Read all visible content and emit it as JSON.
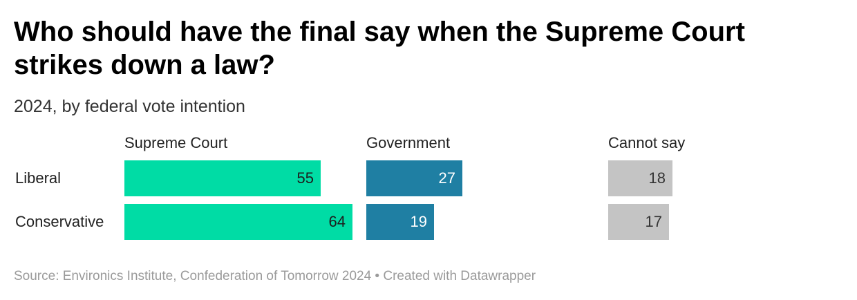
{
  "title": "Who should have the final say when the Supreme Court strikes down a law?",
  "subtitle": "2024, by federal vote intention",
  "source": "Source: Environics Institute, Confederation of Tomorrow 2024 • Created with Datawrapper",
  "chart_data": {
    "type": "bar",
    "orientation": "horizontal",
    "stacking": "split-columns",
    "title": "Who should have the final say when the Supreme Court strikes down a law?",
    "subtitle": "2024, by federal vote intention",
    "categories": [
      "Liberal",
      "Conservative"
    ],
    "series": [
      {
        "name": "Supreme Court",
        "values": [
          55,
          64
        ],
        "color": "#00dca5"
      },
      {
        "name": "Government",
        "values": [
          27,
          19
        ],
        "color": "#1f7fa3"
      },
      {
        "name": "Cannot say",
        "values": [
          18,
          17
        ],
        "color": "#c4c4c4"
      }
    ],
    "value_label_colors": [
      "#1d1d1d",
      "#ffffff",
      "#333333"
    ],
    "xlim": [
      0,
      100
    ],
    "grid": false,
    "legend": "column headers"
  }
}
